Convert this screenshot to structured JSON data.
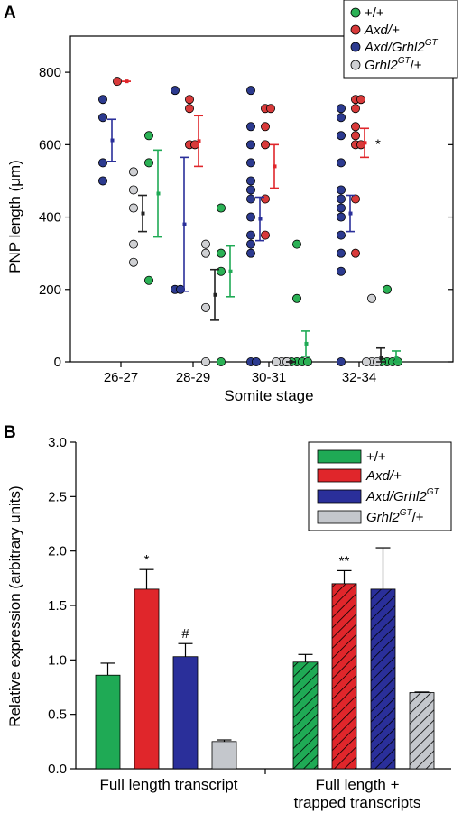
{
  "colors": {
    "wt": "#1faa55",
    "axd": "#e0262b",
    "axdgrhl": "#2a2f9a",
    "grhl": "#c4c7cc",
    "wt_dot": "#2bb155",
    "axd_dot": "#d83a3a",
    "axdgrhl_dot": "#2c3a8f",
    "grhl_dot": "#cfd0d3"
  },
  "chart_data": [
    {
      "panel": "A",
      "type": "scatter",
      "xlabel": "Somite stage",
      "ylabel": "PNP length (μm)",
      "categories": [
        "26-27",
        "28-29",
        "30-31",
        "32-34"
      ],
      "ylim": [
        0,
        900
      ],
      "yticks": [
        0,
        200,
        400,
        600,
        800
      ],
      "legend_position": "top-right",
      "series": [
        {
          "name": "+/+",
          "key": "wt",
          "points": [
            [
              0,
              625
            ],
            [
              0,
              550
            ],
            [
              0,
              225
            ],
            [
              1,
              425
            ],
            [
              1,
              300
            ],
            [
              1,
              250
            ],
            [
              1,
              0
            ],
            [
              2,
              325
            ],
            [
              2,
              175
            ],
            [
              2,
              0
            ],
            [
              2,
              0
            ],
            [
              2,
              0
            ],
            [
              2,
              0
            ],
            [
              2,
              0
            ],
            [
              3,
              200
            ],
            [
              3,
              0
            ],
            [
              3,
              0
            ],
            [
              3,
              0
            ],
            [
              3,
              0
            ]
          ],
          "means": [
            465,
            250,
            50,
            10
          ],
          "errors": [
            120,
            70,
            35,
            20
          ]
        },
        {
          "name": "Axd/+",
          "key": "axd",
          "points": [
            [
              0,
              775
            ],
            [
              1,
              725
            ],
            [
              1,
              700
            ],
            [
              1,
              600
            ],
            [
              1,
              600
            ],
            [
              2,
              700
            ],
            [
              2,
              700
            ],
            [
              2,
              650
            ],
            [
              2,
              600
            ],
            [
              2,
              450
            ],
            [
              2,
              350
            ],
            [
              3,
              725
            ],
            [
              3,
              725
            ],
            [
              3,
              700
            ],
            [
              3,
              650
            ],
            [
              3,
              625
            ],
            [
              3,
              600
            ],
            [
              3,
              600
            ],
            [
              3,
              450
            ],
            [
              3,
              300
            ]
          ],
          "means": [
            775,
            610,
            540,
            605
          ],
          "errors": [
            0,
            70,
            60,
            40
          ]
        },
        {
          "name": "Axd/Grhl2GT",
          "key": "axdgrhl",
          "points": [
            [
              0,
              725
            ],
            [
              0,
              675
            ],
            [
              0,
              550
            ],
            [
              0,
              500
            ],
            [
              1,
              750
            ],
            [
              1,
              200
            ],
            [
              1,
              200
            ],
            [
              2,
              750
            ],
            [
              2,
              650
            ],
            [
              2,
              600
            ],
            [
              2,
              550
            ],
            [
              2,
              500
            ],
            [
              2,
              475
            ],
            [
              2,
              450
            ],
            [
              2,
              400
            ],
            [
              2,
              350
            ],
            [
              2,
              325
            ],
            [
              2,
              300
            ],
            [
              2,
              0
            ],
            [
              2,
              0
            ],
            [
              3,
              700
            ],
            [
              3,
              675
            ],
            [
              3,
              625
            ],
            [
              3,
              550
            ],
            [
              3,
              475
            ],
            [
              3,
              450
            ],
            [
              3,
              425
            ],
            [
              3,
              400
            ],
            [
              3,
              350
            ],
            [
              3,
              300
            ],
            [
              3,
              250
            ],
            [
              3,
              0
            ]
          ],
          "means": [
            612,
            380,
            395,
            410
          ],
          "errors": [
            58,
            185,
            60,
            50
          ]
        },
        {
          "name": "Grhl2GT/+",
          "key": "grhl",
          "points": [
            [
              0,
              525
            ],
            [
              0,
              475
            ],
            [
              0,
              425
            ],
            [
              0,
              325
            ],
            [
              0,
              275
            ],
            [
              1,
              325
            ],
            [
              1,
              300
            ],
            [
              1,
              150
            ],
            [
              1,
              0
            ],
            [
              2,
              0
            ],
            [
              2,
              0
            ],
            [
              2,
              0
            ],
            [
              3,
              175
            ],
            [
              3,
              0
            ],
            [
              3,
              0
            ],
            [
              3,
              0
            ]
          ],
          "means": [
            410,
            185,
            0,
            10
          ],
          "errors": [
            50,
            70,
            0,
            28
          ]
        }
      ],
      "annotations": [
        "*"
      ]
    },
    {
      "panel": "B",
      "type": "bar",
      "ylabel": "Relative expression (arbitrary units)",
      "groups": [
        "Full length transcript",
        "Full length + trapped transcripts"
      ],
      "ylim": [
        0,
        3.0
      ],
      "yticks": [
        "0.0",
        "0.5",
        "1.0",
        "1.5",
        "2.0",
        "2.5",
        "3.0"
      ],
      "legend_position": "top-right",
      "series": [
        {
          "name": "+/+",
          "key": "wt",
          "values": [
            0.86,
            0.98
          ],
          "errors": [
            0.11,
            0.07
          ]
        },
        {
          "name": "Axd/+",
          "key": "axd",
          "values": [
            1.65,
            1.7
          ],
          "errors": [
            0.18,
            0.12
          ]
        },
        {
          "name": "Axd/Grhl2GT",
          "key": "axdgrhl",
          "values": [
            1.03,
            1.65
          ],
          "errors": [
            0.12,
            0.38
          ]
        },
        {
          "name": "Grhl2GT/+",
          "key": "grhl",
          "values": [
            0.25,
            0.7
          ],
          "errors": [
            0.015,
            0.005
          ]
        }
      ],
      "annotations": [
        [
          "*",
          "#"
        ],
        [
          "**",
          ""
        ]
      ],
      "second_group_hatched": true
    }
  ],
  "text": {
    "panel_a": "A",
    "panel_b": "B",
    "group1": "Full length transcript",
    "group2_line1": "Full length +",
    "group2_line2": "trapped transcripts",
    "legend": [
      {
        "pre": "+/+",
        "sup": "",
        "post": ""
      },
      {
        "pre": "Axd/+",
        "sup": "",
        "post": ""
      },
      {
        "pre": "Axd/Grhl2",
        "sup": "GT",
        "post": ""
      },
      {
        "pre": "Grhl2",
        "sup": "GT",
        "post": "/+"
      }
    ]
  }
}
